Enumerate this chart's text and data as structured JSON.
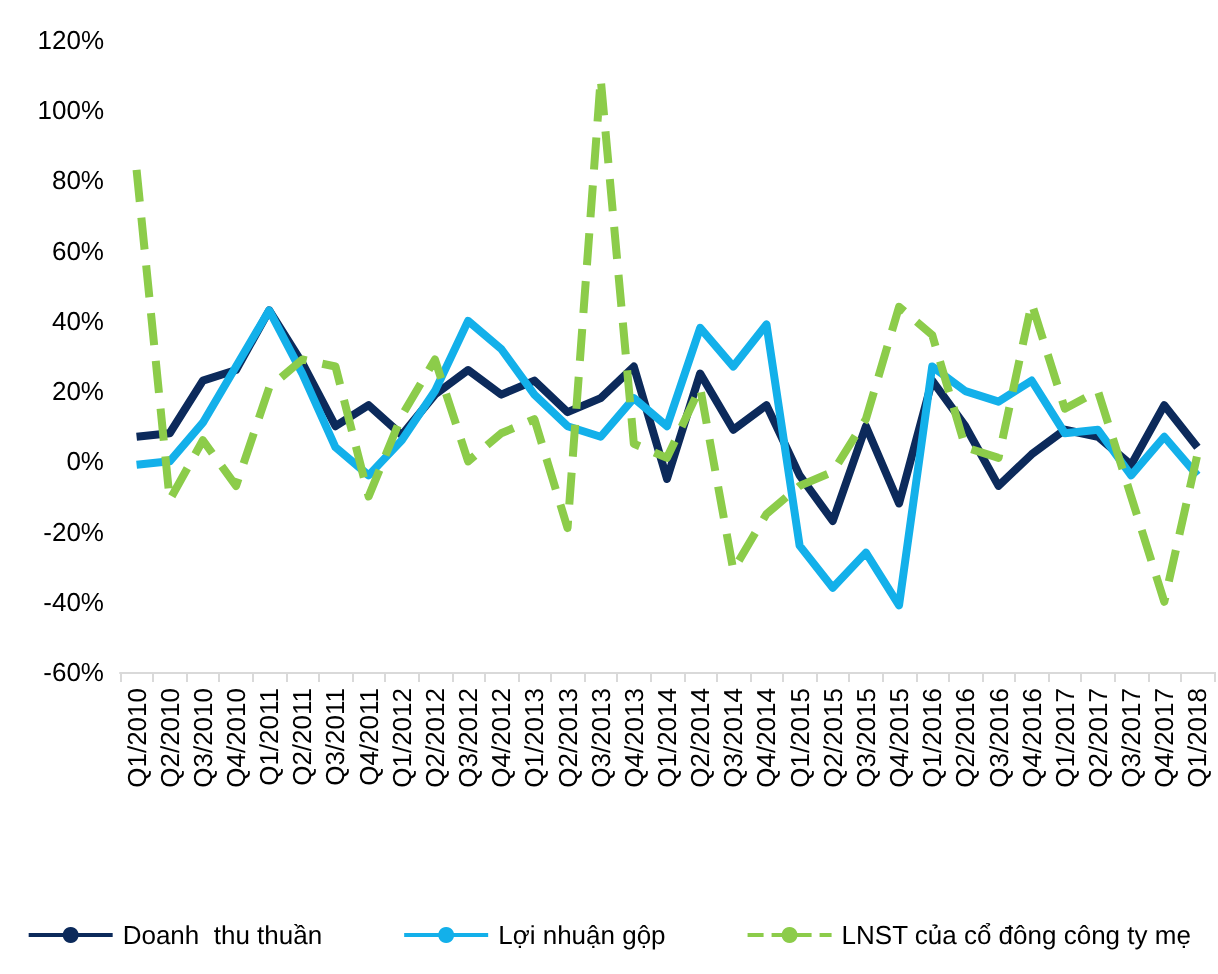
{
  "chart_data": {
    "type": "line",
    "categories": [
      "Q1/2010",
      "Q2/2010",
      "Q3/2010",
      "Q4/2010",
      "Q1/2011",
      "Q2/2011",
      "Q3/2011",
      "Q4/2011",
      "Q1/2012",
      "Q2/2012",
      "Q3/2012",
      "Q4/2012",
      "Q1/2013",
      "Q2/2013",
      "Q3/2013",
      "Q4/2013",
      "Q1/2014",
      "Q2/2014",
      "Q3/2014",
      "Q4/2014",
      "Q1/2015",
      "Q2/2015",
      "Q3/2015",
      "Q4/2015",
      "Q1/2016",
      "Q2/2016",
      "Q3/2016",
      "Q4/2016",
      "Q1/2017",
      "Q2/2017",
      "Q3/2017",
      "Q4/2017",
      "Q1/2018"
    ],
    "series": [
      {
        "name": "Doanh  thu thuần",
        "color": "#0c2a5b",
        "line_style": "solid",
        "values": [
          7,
          8,
          23,
          26,
          43,
          28,
          10,
          16,
          7.5,
          19,
          26,
          19,
          23,
          14,
          18,
          27,
          -5,
          25,
          9,
          16,
          -4,
          -17,
          10,
          -12,
          23,
          10,
          -7,
          2,
          9,
          7,
          -1,
          16,
          4
        ]
      },
      {
        "name": "Lợi nhuận gộp",
        "color": "#13b0ea",
        "line_style": "solid",
        "values": [
          -1,
          0,
          11,
          27,
          43,
          25,
          4,
          -4,
          6,
          20,
          40,
          32,
          19,
          10,
          7,
          18,
          10,
          38,
          27,
          39,
          -24,
          -36,
          -26,
          -41,
          27,
          20,
          17,
          23,
          8,
          9,
          -4,
          7,
          -4
        ]
      },
      {
        "name": "LNST của cổ đông công ty mẹ",
        "color": "#8ccc4a",
        "line_style": "dashed",
        "values": [
          83,
          -11,
          6,
          -7,
          21,
          29,
          27,
          -10,
          13,
          29,
          0,
          8,
          12,
          -19,
          109,
          5,
          1,
          21,
          -31,
          -15,
          -7,
          -3,
          12,
          44,
          36,
          4,
          1,
          45,
          15,
          20,
          -10,
          -40,
          2
        ]
      }
    ],
    "ylim": [
      -60,
      120
    ],
    "yticks": [
      {
        "value": -60,
        "label": "-60%"
      },
      {
        "value": -40,
        "label": "-40%"
      },
      {
        "value": -20,
        "label": "-20%"
      },
      {
        "value": 0,
        "label": "0%"
      },
      {
        "value": 20,
        "label": "20%"
      },
      {
        "value": 40,
        "label": "40%"
      },
      {
        "value": 60,
        "label": "60%"
      },
      {
        "value": 80,
        "label": "80%"
      },
      {
        "value": 100,
        "label": "100%"
      },
      {
        "value": 120,
        "label": "120%"
      }
    ],
    "grid": false,
    "legend": "bottom",
    "marker": "none"
  }
}
